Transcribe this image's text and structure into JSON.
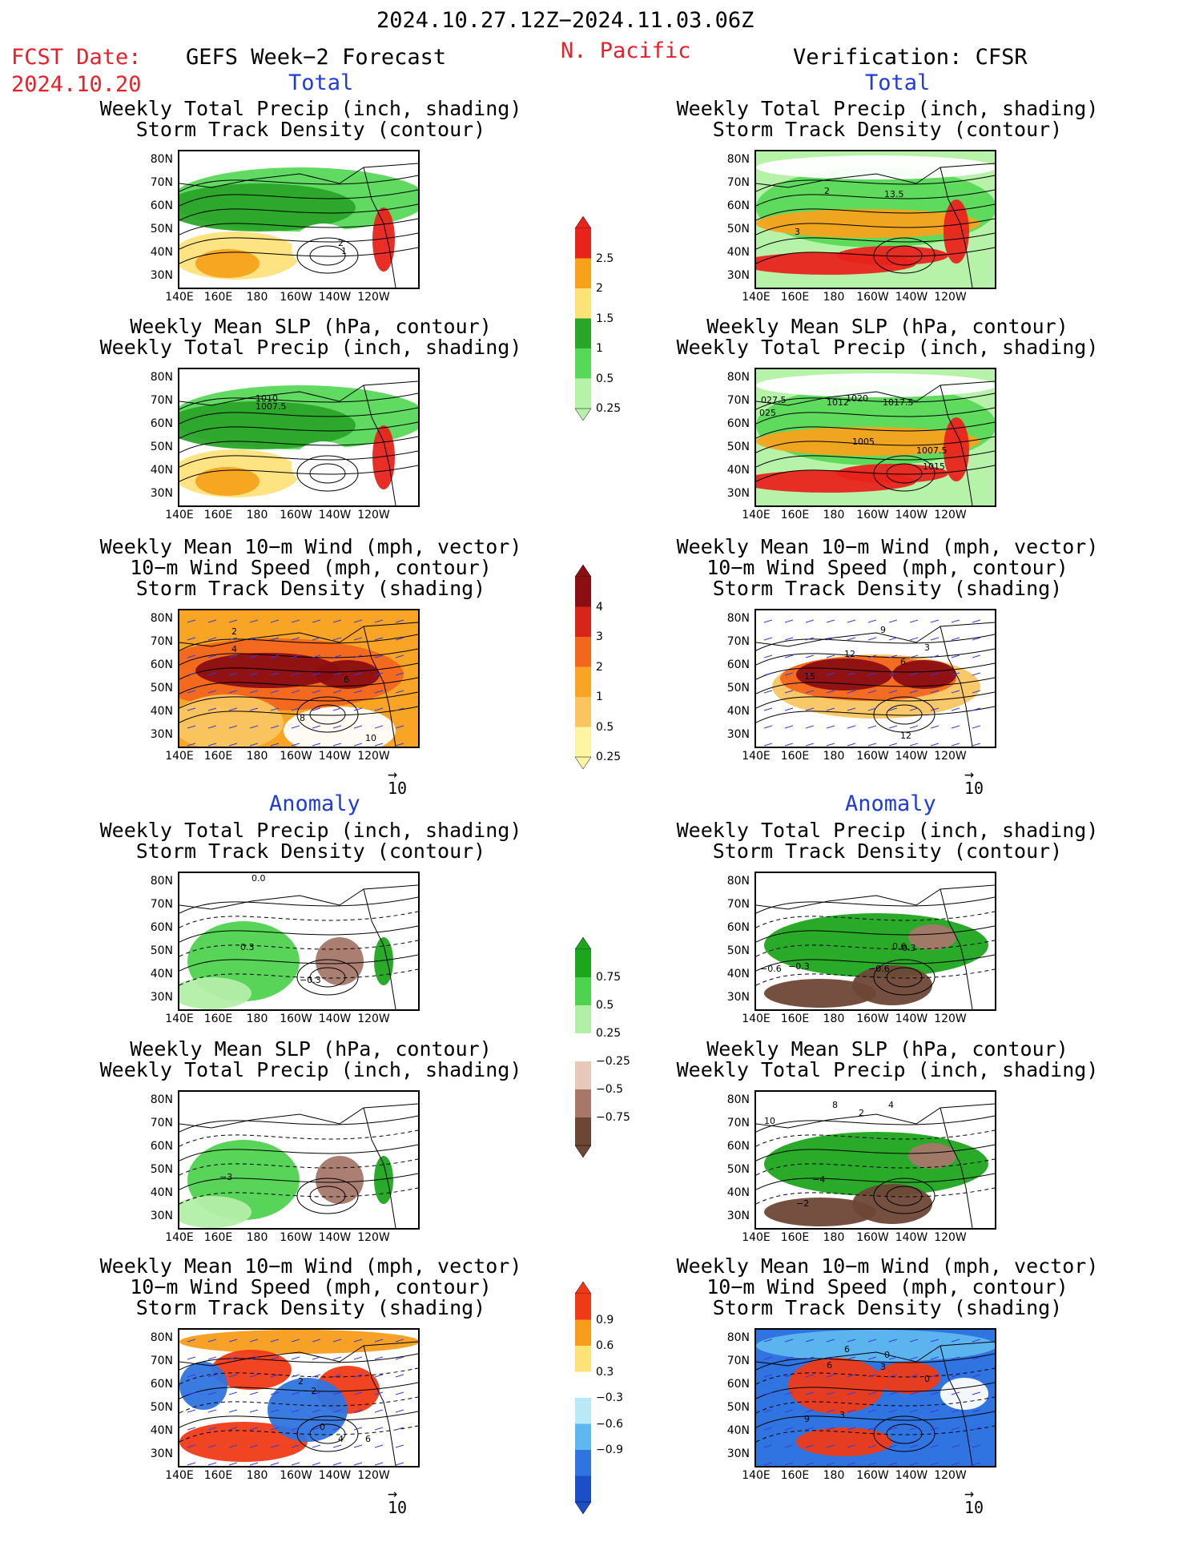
{
  "header": {
    "date_range": "2024.10.27.12Z−2024.11.03.06Z",
    "fcst_label": "FCST Date:",
    "fcst_date": "2024.10.20",
    "forecast_title": "GEFS Week−2 Forecast",
    "region": "N. Pacific",
    "verification": "Verification: CFSR"
  },
  "sections": {
    "total": "Total",
    "anomaly": "Anomaly"
  },
  "titles": {
    "precip_storm": [
      "Weekly Total Precip (inch, shading)",
      "Storm Track Density (contour)"
    ],
    "slp_precip": [
      "Weekly Mean SLP (hPa, contour)",
      "Weekly Total Precip (inch, shading)"
    ],
    "wind_storm": [
      "Weekly Mean 10−m Wind (mph, vector)",
      "10−m Wind Speed (mph, contour)",
      "Storm Track Density (shading)"
    ]
  },
  "axes": {
    "lat_ticks": [
      "80N",
      "70N",
      "60N",
      "50N",
      "40N",
      "30N"
    ],
    "lon_ticks": [
      "140E",
      "160E",
      "180",
      "160W",
      "140W",
      "120W"
    ]
  },
  "vector_ref": "10",
  "colorbars": {
    "precip_total": {
      "labels": [
        "2.5",
        "2",
        "1.5",
        "1",
        "0.5",
        "0.25"
      ],
      "colors": [
        "#e8231c",
        "#f7a21b",
        "#fde27a",
        "#2aa52a",
        "#58d858",
        "#b7f2a9"
      ]
    },
    "storm_total": {
      "labels": [
        "4",
        "3",
        "2",
        "1",
        "0.5",
        "0.25"
      ],
      "colors": [
        "#8b0e12",
        "#d8251b",
        "#f2671d",
        "#f8a425",
        "#f9c560",
        "#fdf4a4"
      ]
    },
    "precip_anom": {
      "labels": [
        "0.75",
        "0.5",
        "0.25",
        "−0.25",
        "−0.5",
        "−0.75"
      ],
      "colors": [
        "#1ea51e",
        "#4fd24f",
        "#b3eea8",
        "#ffffff",
        "#e7c8bb",
        "#a7776a",
        "#6e4636"
      ]
    },
    "storm_anom": {
      "labels": [
        "0.9",
        "0.6",
        "0.3",
        "−0.3",
        "−0.6",
        "−0.9"
      ],
      "colors": [
        "#ef3a17",
        "#f79d1b",
        "#fde27a",
        "#ffffff",
        "#b9e9f7",
        "#5fb7ef",
        "#2f74e0",
        "#1c4fc7"
      ]
    }
  },
  "panel_labels": {
    "p1": [
      "2",
      "1"
    ],
    "p2": [
      "2",
      "13.5",
      "3"
    ],
    "p3": [
      "1010",
      "1007.5"
    ],
    "p4": [
      "027.5",
      "025",
      "1012",
      "1020",
      "1017.5",
      "1005",
      "1007.5",
      "1015"
    ],
    "p5": [
      "2",
      "4",
      "6",
      "8",
      "10"
    ],
    "p6": [
      "9",
      "12",
      "6",
      "15",
      "3",
      "12"
    ],
    "p7": [
      "0.0",
      "0.3",
      "−0.3"
    ],
    "p8": [
      "−0.6",
      "0.3",
      "−0.3",
      "−0.6",
      "0.6"
    ],
    "p9": [
      "−3"
    ],
    "p10": [
      "10",
      "8",
      "2",
      "4",
      "−4",
      "−2"
    ],
    "p11": [
      "2",
      "−2",
      "6",
      "4",
      "0"
    ],
    "p12": [
      "6",
      "6",
      "3",
      "0",
      "9",
      "3",
      "0"
    ]
  }
}
